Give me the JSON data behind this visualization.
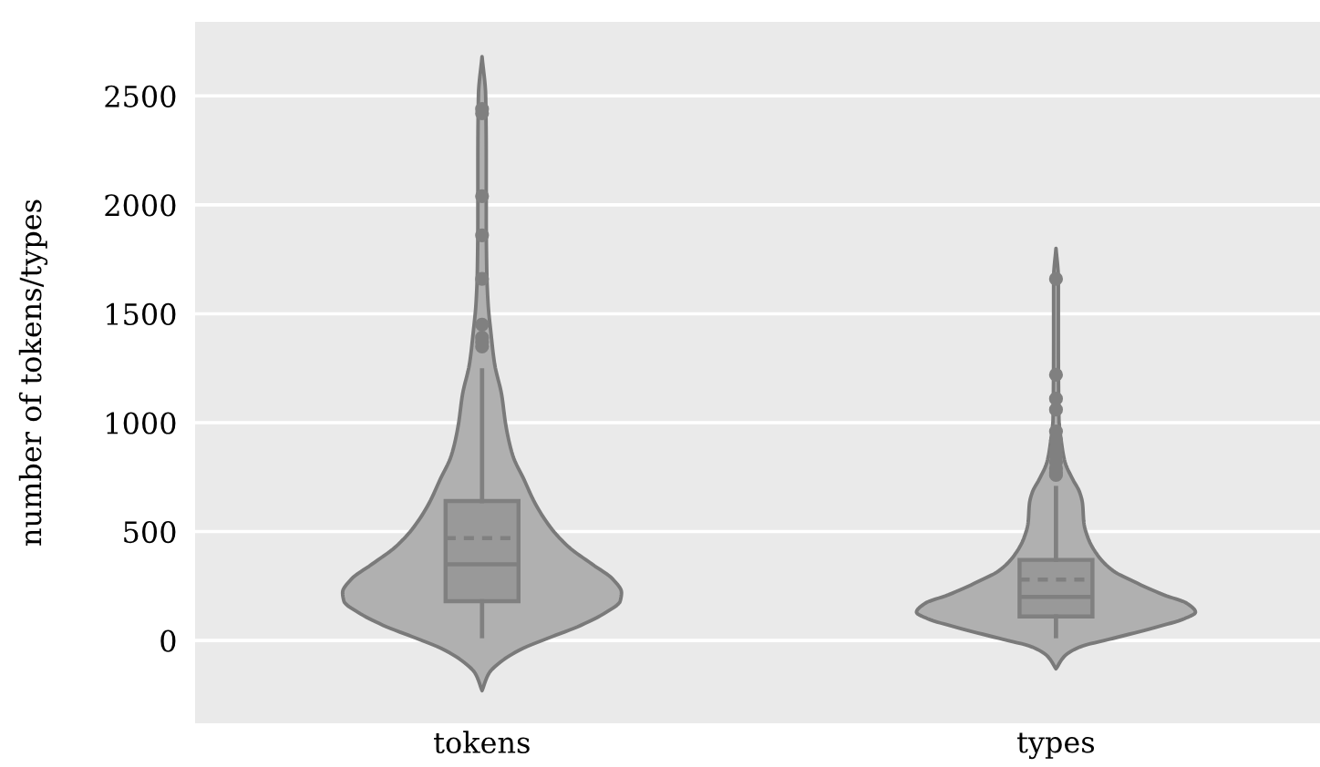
{
  "chart_data": {
    "type": "box",
    "ylabel": "number of tokens/types",
    "categories": [
      "tokens",
      "types"
    ],
    "boxes": [
      {
        "low": 20,
        "q1": 180,
        "median": 350,
        "q3": 640,
        "high": 1240,
        "mean": 470,
        "outliers": [
          2440,
          2420,
          2040,
          1860,
          1660,
          1450,
          1390,
          1370,
          1350
        ]
      },
      {
        "low": 20,
        "q1": 110,
        "median": 200,
        "q3": 370,
        "high": 700,
        "mean": 280,
        "outliers": [
          1660,
          1220,
          1110,
          1060,
          960,
          920,
          880,
          850,
          820,
          790,
          770,
          760
        ]
      }
    ],
    "colors": [
      "#999999",
      "#999999"
    ],
    "ylim": [
      -380,
      2840
    ],
    "yticks": [
      0,
      500,
      1000,
      1500,
      2000,
      2500
    ],
    "grid": "y",
    "marker": "circle"
  }
}
